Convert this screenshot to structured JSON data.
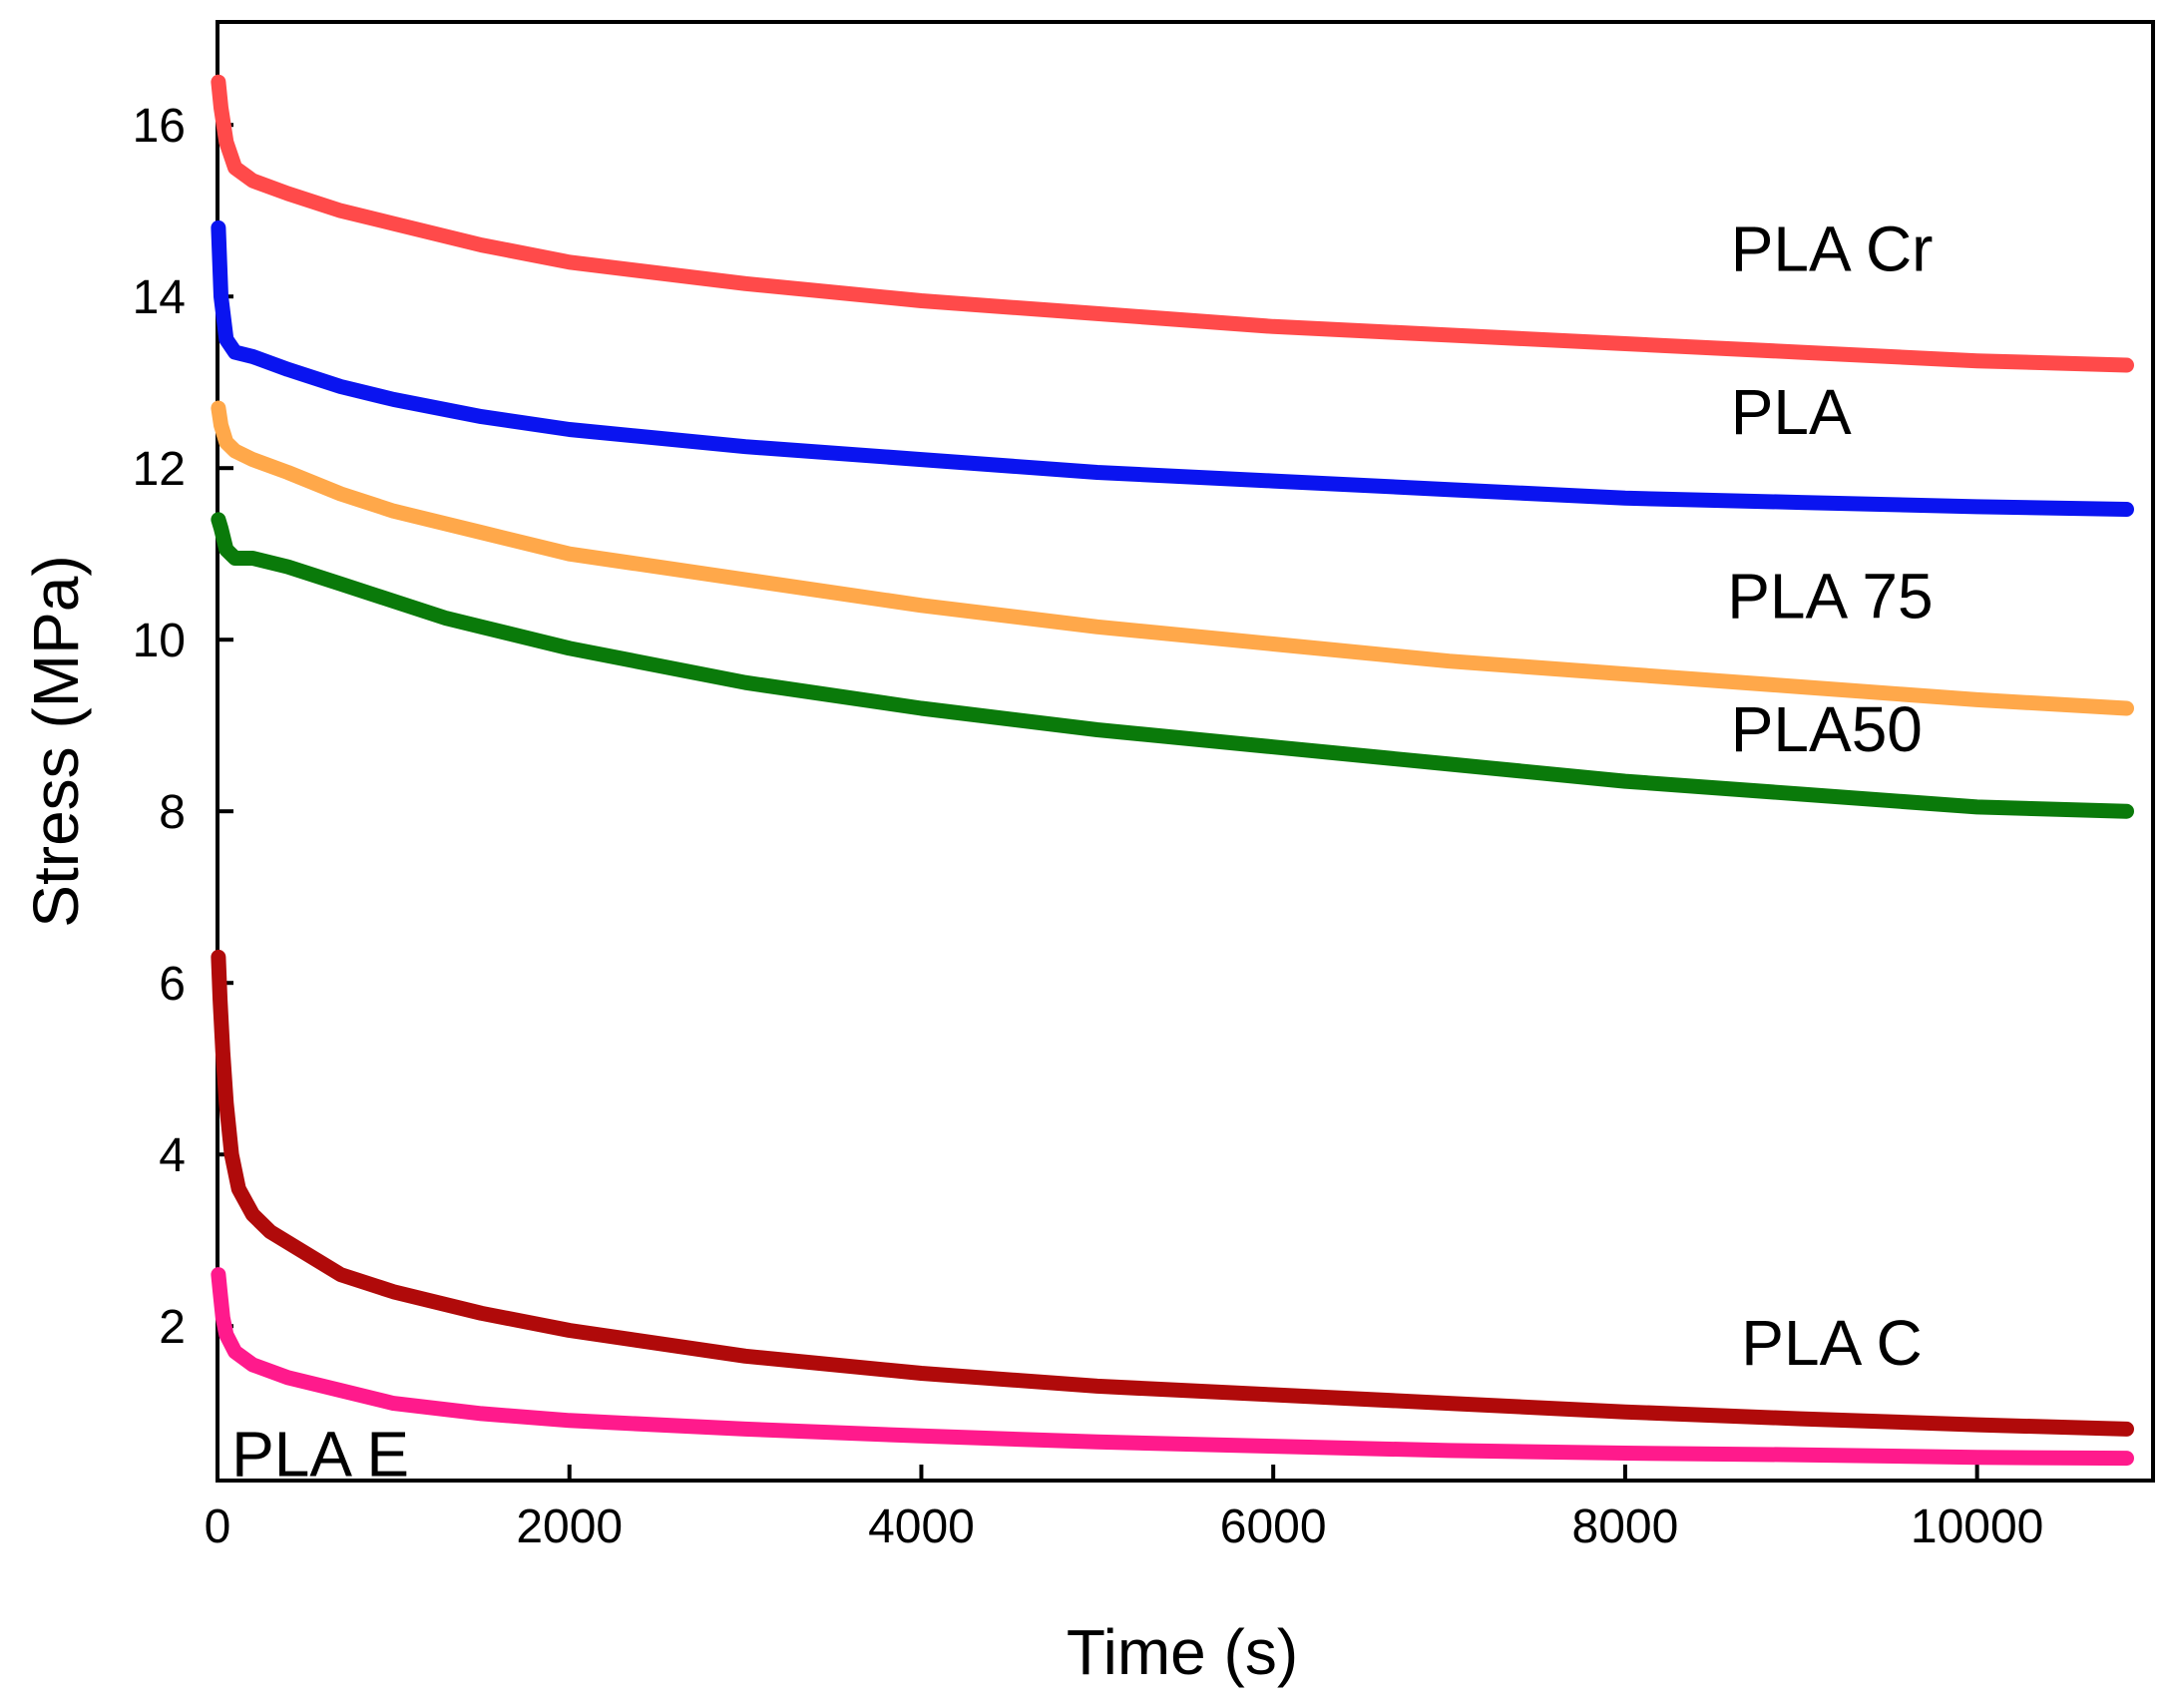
{
  "chart_data": {
    "type": "line",
    "title": "",
    "xlabel": "Time (s)",
    "ylabel": "Stress (MPa)",
    "xlim": [
      0,
      11000
    ],
    "ylim": [
      0.2,
      17.2
    ],
    "xticks": [
      0,
      2000,
      4000,
      6000,
      8000,
      10000
    ],
    "yticks": [
      2,
      4,
      6,
      8,
      10,
      12,
      14,
      16
    ],
    "series": [
      {
        "name": "PLA Cr",
        "color": "#ff4a4a",
        "x": [
          5,
          20,
          50,
          100,
          200,
          400,
          700,
          1000,
          1500,
          2000,
          3000,
          4000,
          5000,
          6000,
          7000,
          8000,
          9000,
          10000,
          10850
        ],
        "y": [
          16.5,
          16.2,
          15.8,
          15.5,
          15.35,
          15.2,
          15.0,
          14.85,
          14.6,
          14.4,
          14.15,
          13.95,
          13.8,
          13.65,
          13.55,
          13.45,
          13.35,
          13.25,
          13.2
        ]
      },
      {
        "name": "PLA",
        "color": "#0a14f0",
        "x": [
          5,
          20,
          50,
          100,
          200,
          400,
          700,
          1000,
          1500,
          2000,
          3000,
          4000,
          5000,
          6000,
          7000,
          8000,
          9000,
          10000,
          10850
        ],
        "y": [
          14.8,
          14.0,
          13.5,
          13.35,
          13.3,
          13.15,
          12.95,
          12.8,
          12.6,
          12.45,
          12.25,
          12.1,
          11.95,
          11.85,
          11.75,
          11.65,
          11.6,
          11.55,
          11.52
        ]
      },
      {
        "name": "PLA 75",
        "color": "#ffa84a",
        "x": [
          5,
          20,
          50,
          100,
          200,
          400,
          700,
          1000,
          1500,
          2000,
          3000,
          4000,
          5000,
          6000,
          7000,
          8000,
          9000,
          10000,
          10850
        ],
        "y": [
          12.7,
          12.5,
          12.3,
          12.2,
          12.1,
          11.95,
          11.7,
          11.5,
          11.25,
          11.0,
          10.7,
          10.4,
          10.15,
          9.95,
          9.75,
          9.6,
          9.45,
          9.3,
          9.2
        ]
      },
      {
        "name": "PLA50",
        "color": "#0a7a0a",
        "x": [
          5,
          20,
          50,
          100,
          200,
          400,
          700,
          1000,
          1300,
          1500,
          2000,
          3000,
          4000,
          5000,
          6000,
          7000,
          8000,
          9000,
          10000,
          10850
        ],
        "y": [
          11.4,
          11.3,
          11.05,
          10.95,
          10.95,
          10.85,
          10.65,
          10.45,
          10.25,
          10.15,
          9.9,
          9.5,
          9.2,
          8.95,
          8.75,
          8.55,
          8.35,
          8.2,
          8.05,
          8.0
        ]
      },
      {
        "name": "PLA C",
        "color": "#b00a0a",
        "x": [
          5,
          15,
          30,
          50,
          80,
          120,
          200,
          300,
          500,
          700,
          1000,
          1500,
          2000,
          3000,
          4000,
          5000,
          6000,
          7000,
          8000,
          9000,
          10000,
          10850
        ],
        "y": [
          6.3,
          5.8,
          5.2,
          4.6,
          4.0,
          3.6,
          3.3,
          3.1,
          2.85,
          2.6,
          2.4,
          2.15,
          1.95,
          1.65,
          1.45,
          1.3,
          1.2,
          1.1,
          1.0,
          0.92,
          0.85,
          0.8
        ]
      },
      {
        "name": "PLA E",
        "color": "#ff1a8c",
        "x": [
          5,
          15,
          30,
          50,
          100,
          200,
          400,
          700,
          1000,
          1500,
          2000,
          3000,
          4000,
          5000,
          6000,
          7000,
          8000,
          9000,
          10000,
          10850
        ],
        "y": [
          2.6,
          2.4,
          2.1,
          1.9,
          1.7,
          1.55,
          1.4,
          1.25,
          1.1,
          0.98,
          0.9,
          0.8,
          0.72,
          0.65,
          0.6,
          0.55,
          0.52,
          0.5,
          0.47,
          0.46
        ]
      }
    ],
    "labels": [
      {
        "text": "PLA Cr",
        "x": 8600,
        "y": 14.3
      },
      {
        "text": "PLA",
        "x": 8600,
        "y": 12.4
      },
      {
        "text": "PLA 75",
        "x": 8580,
        "y": 10.25
      },
      {
        "text": "PLA50",
        "x": 8600,
        "y": 8.7
      },
      {
        "text": "PLA C",
        "x": 8660,
        "y": 1.55
      },
      {
        "text": "PLA E",
        "x": 80,
        "y": 0.25
      }
    ]
  }
}
